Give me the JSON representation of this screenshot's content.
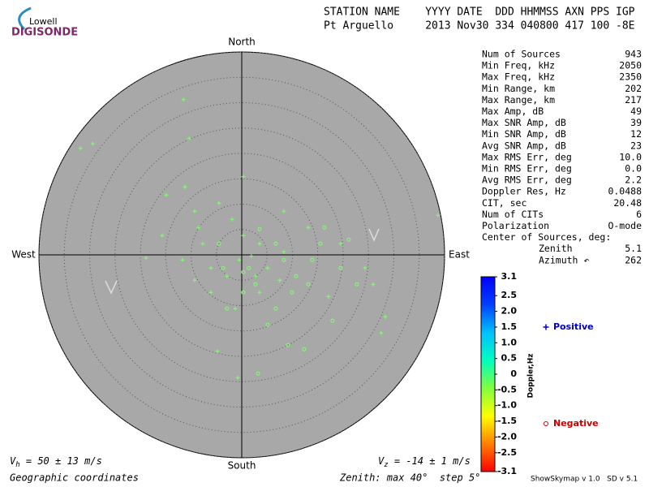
{
  "logo": {
    "top": "Lowell",
    "bottom": "DIGISONDE"
  },
  "header": {
    "line1": "STATION NAME    YYYY DATE  DDD HHMMSS AXN PPS IGP",
    "line2": "Pt Arguello     2013 Nov30 334 040800 417 100 -8E"
  },
  "stats": {
    "rows": [
      [
        "Num of Sources",
        "943"
      ],
      [
        "Min Freq, kHz",
        "2050"
      ],
      [
        "Max Freq, kHz",
        "2350"
      ],
      [
        "Min Range, km",
        "202"
      ],
      [
        "Max Range, km",
        "217"
      ],
      [
        "Max Amp, dB",
        "49"
      ],
      [
        "Max SNR Amp, dB",
        "39"
      ],
      [
        "Min SNR Amp, dB",
        "12"
      ],
      [
        "Avg SNR Amp, dB",
        "23"
      ],
      [
        "Max RMS Err, deg",
        "10.0"
      ],
      [
        "Min RMS Err, deg",
        "0.0"
      ],
      [
        "Avg RMS Err, deg",
        "2.2"
      ],
      [
        "Doppler Res, Hz",
        "0.0488"
      ],
      [
        "CIT, sec",
        "20.48"
      ],
      [
        "Num of CITs",
        "6"
      ],
      [
        "Polarization",
        "O-mode"
      ]
    ],
    "center_title": "Center of Sources, deg:",
    "center_rows": [
      [
        "Zenith",
        "5.1"
      ],
      [
        "Azimuth ↶",
        "262"
      ]
    ]
  },
  "footer": {
    "vh_symbol": "V",
    "vh_sub": "h",
    "vh_text": " = 50 ± 13 m/s",
    "vz_symbol": "V",
    "vz_sub": "z",
    "vz_text": " = -14 ± 1 m/s",
    "coords": "Geographic coordinates",
    "zenith": "Zenith: max 40°  step 5°",
    "version": "ShowSkymap v 1.0   SD v 5.1"
  },
  "chart_data": {
    "type": "scatter",
    "directions": {
      "north": "North",
      "south": "South",
      "east": "East",
      "west": "West"
    },
    "xlim": [
      -40,
      40
    ],
    "ylim": [
      -40,
      40
    ],
    "rings": [
      5,
      10,
      15,
      20,
      25,
      30,
      35,
      40
    ],
    "series": [
      {
        "name": "Positive",
        "marker": "plus",
        "color": "#80ff70",
        "legend_color": "#0000cc",
        "x": [
          -11.5,
          -31.8,
          -29.4,
          -10.4,
          0.3,
          -14.9,
          -11.2,
          -9.3,
          -4.5,
          -1.9,
          0.3,
          3.5,
          -7.7,
          -6.1,
          -2.9,
          -11.7,
          -18.9,
          -6.1,
          -1.3,
          3.5,
          8.3,
          13.1,
          19.5,
          24.3,
          25.9,
          28.3,
          27.5,
          -4.8,
          -0.8,
          38.7,
          17.1,
          8.3,
          5.1,
          1.9,
          -0.5,
          2.7,
          7.5,
          -9.3,
          -15.7,
          -8.5
        ],
        "y": [
          30.6,
          21.0,
          21.9,
          22.9,
          15.4,
          11.8,
          13.4,
          8.6,
          10.2,
          7.0,
          3.8,
          2.2,
          2.2,
          -2.6,
          -4.2,
          -1.0,
          -0.6,
          -7.4,
          -10.6,
          -7.4,
          8.6,
          5.4,
          2.2,
          -2.6,
          -5.8,
          -12.2,
          -15.4,
          -19.0,
          -24.2,
          7.8,
          -8.2,
          0.6,
          -2.6,
          -0.2,
          -1.0,
          -4.2,
          -5.0,
          -5.0,
          3.8,
          5.4
        ]
      },
      {
        "name": "Negative",
        "marker": "circle",
        "color": "#80ff70",
        "legend_color": "#cc0000",
        "x": [
          3.5,
          1.4,
          6.7,
          9.1,
          12.3,
          3.2,
          17.9,
          22.7,
          21.1,
          15.5,
          10.7,
          -2.9,
          5.1,
          0.3,
          8.3,
          -3.7,
          2.7,
          13.9,
          19.5,
          9.9,
          16.3,
          -4.5,
          0.3,
          6.7,
          13.1
        ],
        "y": [
          5.1,
          -2.6,
          -10.6,
          -17.8,
          -18.6,
          -23.4,
          -13.0,
          -5.8,
          3.0,
          2.2,
          -4.2,
          -10.6,
          -13.8,
          -3.4,
          -1.0,
          -2.6,
          -5.8,
          -1.0,
          -2.6,
          -7.4,
          5.4,
          2.2,
          -7.4,
          2.2,
          -5.8
        ]
      }
    ],
    "colorbar": {
      "label": "Doppler,Hz",
      "clim": [
        -3.1,
        3.1
      ],
      "colors": [
        "#ff0000",
        "#ff8000",
        "#ffff00",
        "#80ff40",
        "#00ffc0",
        "#00c0ff",
        "#0040ff",
        "#0000ff"
      ],
      "ticks": [
        3.1,
        2.5,
        {
          "value": 2.0,
          "label": "2.0"
        },
        1.5,
        {
          "value": 1.0,
          "label": "1.0"
        },
        0.5,
        0,
        -0.5,
        {
          "value": -1.0,
          "label": "-1.0"
        },
        -1.5,
        {
          "value": -2.0,
          "label": "-2.0"
        },
        -2.5,
        -3.1
      ]
    }
  }
}
